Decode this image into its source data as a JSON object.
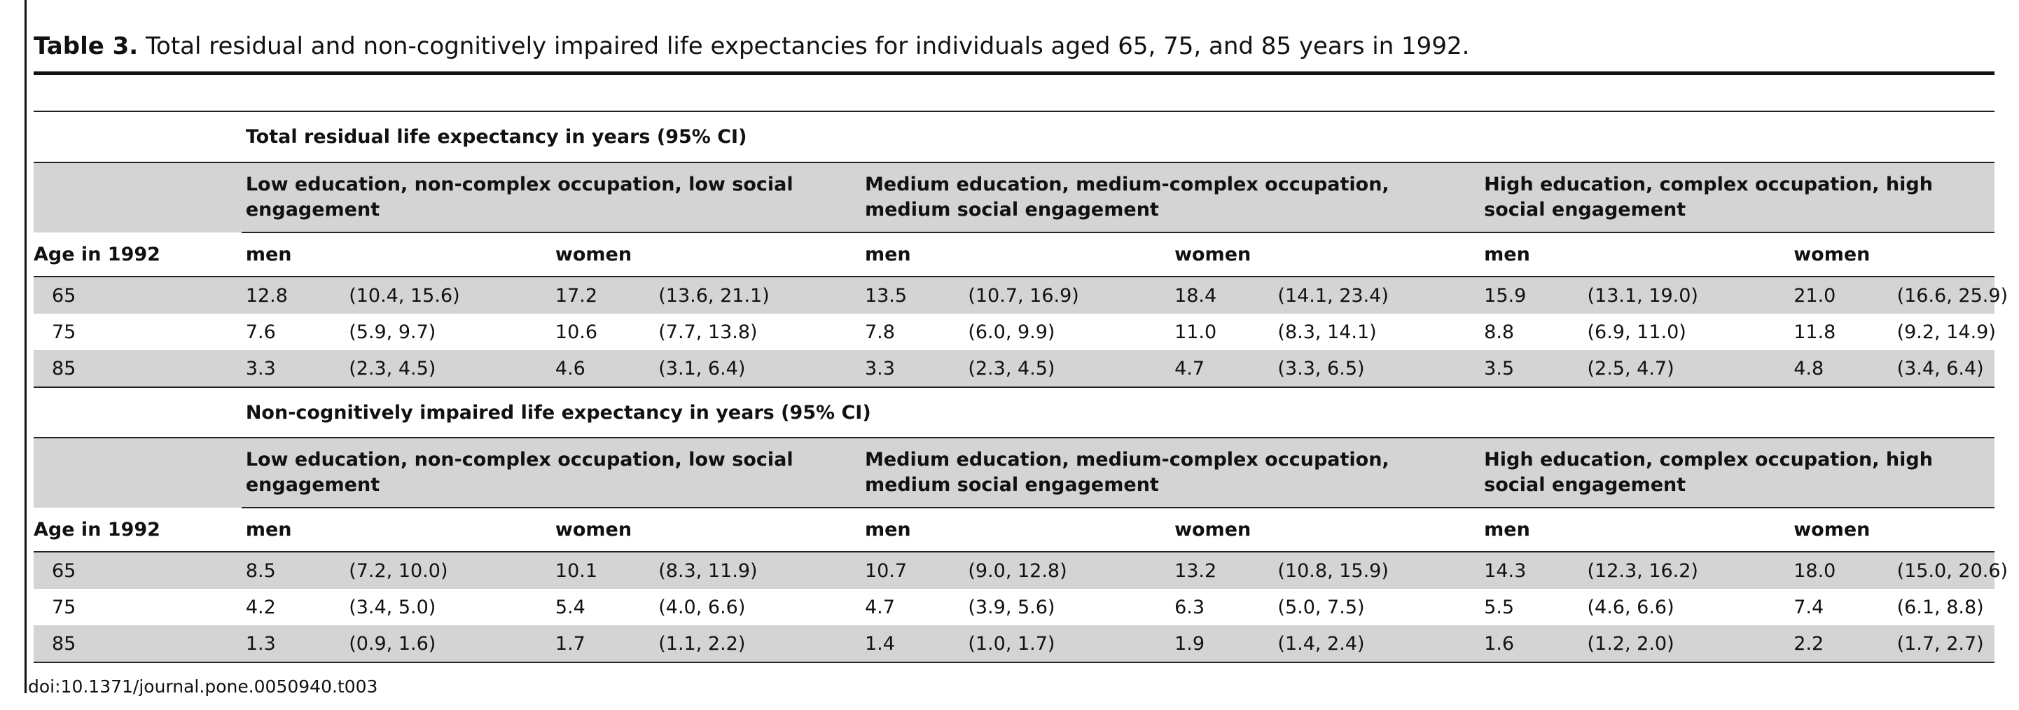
{
  "caption": {
    "label": "Table 3.",
    "text": "Total residual and non-cognitively impaired life expectancies for individuals aged 65, 75, and 85 years in 1992."
  },
  "table": {
    "age_header": "Age in 1992",
    "groups": [
      "Low education, non-complex occupation, low social engagement",
      "Medium education, medium-complex occupation, medium social engagement",
      "High education, complex occupation, high social engagement"
    ],
    "sexes": [
      "men",
      "women"
    ],
    "sections": [
      {
        "title": "Total residual life expectancy in years (95% CI)",
        "rows": [
          {
            "age": "65",
            "cells": [
              {
                "value": "12.8",
                "ci": "(10.4, 15.6)"
              },
              {
                "value": "17.2",
                "ci": "(13.6, 21.1)"
              },
              {
                "value": "13.5",
                "ci": "(10.7, 16.9)"
              },
              {
                "value": "18.4",
                "ci": "(14.1, 23.4)"
              },
              {
                "value": "15.9",
                "ci": "(13.1, 19.0)"
              },
              {
                "value": "21.0",
                "ci": "(16.6, 25.9)"
              }
            ]
          },
          {
            "age": "75",
            "cells": [
              {
                "value": "7.6",
                "ci": "(5.9, 9.7)"
              },
              {
                "value": "10.6",
                "ci": "(7.7, 13.8)"
              },
              {
                "value": "7.8",
                "ci": "(6.0, 9.9)"
              },
              {
                "value": "11.0",
                "ci": "(8.3, 14.1)"
              },
              {
                "value": "8.8",
                "ci": "(6.9, 11.0)"
              },
              {
                "value": "11.8",
                "ci": "(9.2, 14.9)"
              }
            ]
          },
          {
            "age": "85",
            "cells": [
              {
                "value": "3.3",
                "ci": "(2.3, 4.5)"
              },
              {
                "value": "4.6",
                "ci": "(3.1, 6.4)"
              },
              {
                "value": "3.3",
                "ci": "(2.3, 4.5)"
              },
              {
                "value": "4.7",
                "ci": "(3.3, 6.5)"
              },
              {
                "value": "3.5",
                "ci": "(2.5, 4.7)"
              },
              {
                "value": "4.8",
                "ci": "(3.4, 6.4)"
              }
            ]
          }
        ]
      },
      {
        "title": "Non-cognitively impaired life expectancy in years (95% CI)",
        "rows": [
          {
            "age": "65",
            "cells": [
              {
                "value": "8.5",
                "ci": "(7.2, 10.0)"
              },
              {
                "value": "10.1",
                "ci": "(8.3, 11.9)"
              },
              {
                "value": "10.7",
                "ci": "(9.0, 12.8)"
              },
              {
                "value": "13.2",
                "ci": "(10.8, 15.9)"
              },
              {
                "value": "14.3",
                "ci": "(12.3, 16.2)"
              },
              {
                "value": "18.0",
                "ci": "(15.0, 20.6)"
              }
            ]
          },
          {
            "age": "75",
            "cells": [
              {
                "value": "4.2",
                "ci": "(3.4, 5.0)"
              },
              {
                "value": "5.4",
                "ci": "(4.0, 6.6)"
              },
              {
                "value": "4.7",
                "ci": "(3.9, 5.6)"
              },
              {
                "value": "6.3",
                "ci": "(5.0, 7.5)"
              },
              {
                "value": "5.5",
                "ci": "(4.6, 6.6)"
              },
              {
                "value": "7.4",
                "ci": "(6.1, 8.8)"
              }
            ]
          },
          {
            "age": "85",
            "cells": [
              {
                "value": "1.3",
                "ci": "(0.9, 1.6)"
              },
              {
                "value": "1.7",
                "ci": "(1.1, 2.2)"
              },
              {
                "value": "1.4",
                "ci": "(1.0, 1.7)"
              },
              {
                "value": "1.9",
                "ci": "(1.4, 2.4)"
              },
              {
                "value": "1.6",
                "ci": "(1.2, 2.0)"
              },
              {
                "value": "2.2",
                "ci": "(1.7, 2.7)"
              }
            ]
          }
        ]
      }
    ]
  },
  "footer": {
    "doi": "doi:10.1371/journal.pone.0050940.t003"
  }
}
